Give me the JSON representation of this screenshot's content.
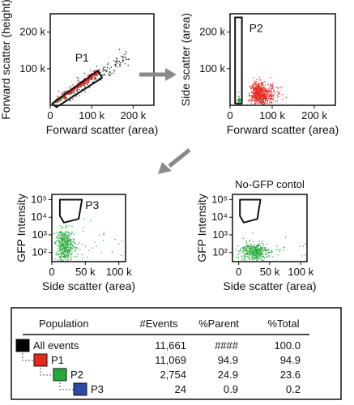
{
  "chart_data": [
    {
      "type": "scatter",
      "title": "",
      "xlabel": "Forward scatter (area)",
      "ylabel": "Forward scatter (height)",
      "xlim": [
        0,
        250000
      ],
      "ylim": [
        0,
        250000
      ],
      "x_ticks": [
        {
          "value": 0,
          "label": "0"
        },
        {
          "value": 100000,
          "label": "100 k"
        },
        {
          "value": 200000,
          "label": "200 k"
        }
      ],
      "y_ticks": [
        {
          "value": 100000,
          "label": "100 k"
        },
        {
          "value": 200000,
          "label": "200 k"
        }
      ],
      "gate": {
        "name": "P1",
        "vertices": [
          [
            5000,
            5000
          ],
          [
            115000,
            95000
          ],
          [
            125000,
            75000
          ],
          [
            15000,
            -5000
          ]
        ]
      },
      "populations": [
        {
          "color": "#1a1a1a",
          "count": 180,
          "x_range": [
            20000,
            190000
          ],
          "slope": 0.7,
          "spread": 12000
        },
        {
          "color": "#e8281e",
          "count": 420,
          "x_range": [
            12000,
            118000
          ],
          "slope": 0.78,
          "spread": 4000
        },
        {
          "color": "#26a83c",
          "count": 30,
          "x_range": [
            8000,
            30000
          ],
          "slope": 0.75,
          "spread": 2500
        }
      ],
      "gate_label": "P1"
    },
    {
      "type": "scatter",
      "title": "",
      "xlabel": "Forward scatter (area)",
      "ylabel": "Side scatter (area)",
      "xlim": [
        0,
        250000
      ],
      "ylim": [
        0,
        250000
      ],
      "x_ticks": [
        {
          "value": 0,
          "label": "0"
        },
        {
          "value": 100000,
          "label": "100 k"
        },
        {
          "value": 200000,
          "label": "200 k"
        }
      ],
      "y_ticks": [
        {
          "value": 100000,
          "label": "100 k"
        },
        {
          "value": 200000,
          "label": "200 k"
        }
      ],
      "gate": {
        "name": "P2",
        "vertices": [
          [
            12000,
            240000
          ],
          [
            28000,
            240000
          ],
          [
            28000,
            5000
          ],
          [
            12000,
            5000
          ]
        ]
      },
      "populations": [
        {
          "color": "#e8281e",
          "count": 650,
          "center": [
            60000,
            30000
          ],
          "sx": 22000,
          "sy": 16000
        },
        {
          "color": "#26a83c",
          "count": 40,
          "center": [
            20000,
            12000
          ],
          "sx": 4000,
          "sy": 7000
        }
      ],
      "gate_label": "P2"
    },
    {
      "type": "scatter",
      "title": "",
      "xlabel": "Side scatter (area)",
      "ylabel": "GFP Intensity",
      "xlim": [
        0,
        110000
      ],
      "ylog": true,
      "ylim": [
        30,
        200000
      ],
      "x_ticks": [
        {
          "value": 0,
          "label": "0"
        },
        {
          "value": 50000,
          "label": "50 k"
        },
        {
          "value": 100000,
          "label": "100 k"
        }
      ],
      "y_ticks": [
        {
          "value": 100,
          "label": "10²"
        },
        {
          "value": 1000,
          "label": "10³"
        },
        {
          "value": 10000,
          "label": "10⁴"
        },
        {
          "value": 100000,
          "label": "10⁵"
        }
      ],
      "gate": {
        "name": "P3",
        "vertices": [
          [
            12000,
            100000
          ],
          [
            45000,
            100000
          ],
          [
            40000,
            8000
          ],
          [
            18000,
            5000
          ],
          [
            12000,
            12000
          ]
        ]
      },
      "populations": [
        {
          "color": "#26a83c",
          "count": 420,
          "center_x": 20000,
          "sx": 7000,
          "log_center": 2.4,
          "log_sd": 0.45
        },
        {
          "color": "#26a83c",
          "count": 30,
          "center_x": 60000,
          "sx": 25000,
          "log_center": 2.6,
          "log_sd": 0.5
        }
      ],
      "gate_label": "P3"
    },
    {
      "type": "scatter",
      "title": "No-GFP contol",
      "xlabel": "Side scatter (area)",
      "ylabel": "GFP Intensity",
      "xlim": [
        -10000,
        110000
      ],
      "ylog": true,
      "ylim": [
        30,
        200000
      ],
      "x_ticks": [
        {
          "value": 0,
          "label": "0"
        },
        {
          "value": 50000,
          "label": "50 k"
        },
        {
          "value": 100000,
          "label": "100 k"
        }
      ],
      "y_ticks": [
        {
          "value": 100,
          "label": "10²"
        },
        {
          "value": 1000,
          "label": "10³"
        },
        {
          "value": 10000,
          "label": "10⁴"
        },
        {
          "value": 100000,
          "label": "10⁵"
        }
      ],
      "gate": {
        "name": "",
        "vertices": [
          [
            2000,
            100000
          ],
          [
            35000,
            100000
          ],
          [
            30000,
            8000
          ],
          [
            8000,
            5000
          ],
          [
            2000,
            12000
          ]
        ]
      },
      "populations": [
        {
          "color": "#26a83c",
          "count": 380,
          "center_x": 25000,
          "sx": 11000,
          "log_center": 2.05,
          "log_sd": 0.25
        },
        {
          "color": "#26a83c",
          "count": 25,
          "center_x": 70000,
          "sx": 20000,
          "log_center": 2.15,
          "log_sd": 0.3
        }
      ],
      "gate_label": ""
    }
  ],
  "hierarchy_table": {
    "headers": [
      "Population",
      "#Events",
      "%Parent",
      "%Total"
    ],
    "rows": [
      {
        "name": "All events",
        "color": "#000000",
        "level": 0,
        "events": "11,661",
        "parent": "####",
        "total": "100.0"
      },
      {
        "name": "P1",
        "color": "#e8281e",
        "level": 1,
        "events": "11,069",
        "parent": "94.9",
        "total": "94.9"
      },
      {
        "name": "P2",
        "color": "#26a83c",
        "level": 2,
        "events": "2,754",
        "parent": "24.9",
        "total": "23.6"
      },
      {
        "name": "P3",
        "color": "#2c4aa8",
        "level": 3,
        "events": "24",
        "parent": "0.9",
        "total": "0.2"
      }
    ]
  },
  "colors": {
    "arrow": "#8a8a8a",
    "axis": "#111111"
  }
}
